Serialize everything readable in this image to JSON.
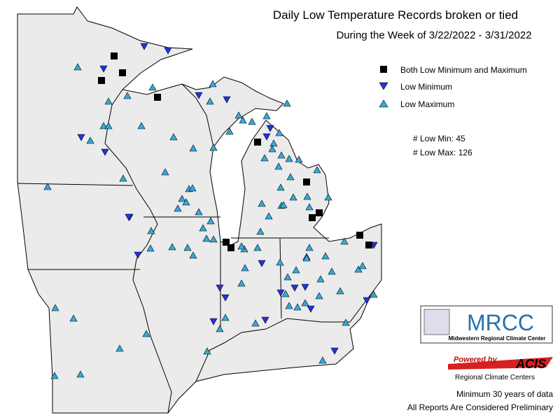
{
  "header": {
    "title": "Daily Low Temperature Records broken or tied",
    "subtitle": "During the Week of 3/22/2022 - 3/31/2022"
  },
  "legend": {
    "entries": [
      "Both Low Minimum and Maximum",
      "Low Minimum",
      "Low Maximum"
    ]
  },
  "counts": {
    "low_min": "# Low Min: 45",
    "low_max": "# Low Max: 126"
  },
  "logo": {
    "name": "MRCC",
    "full_name": "Midwestern Regional Climate Center"
  },
  "acis": {
    "powered": "Powered by",
    "name": "ACIS",
    "sub": "Regional Climate Centers"
  },
  "footer": {
    "note": "Minimum 30 years of data",
    "disclaimer": "All Reports Are Considered Preliminary"
  }
}
